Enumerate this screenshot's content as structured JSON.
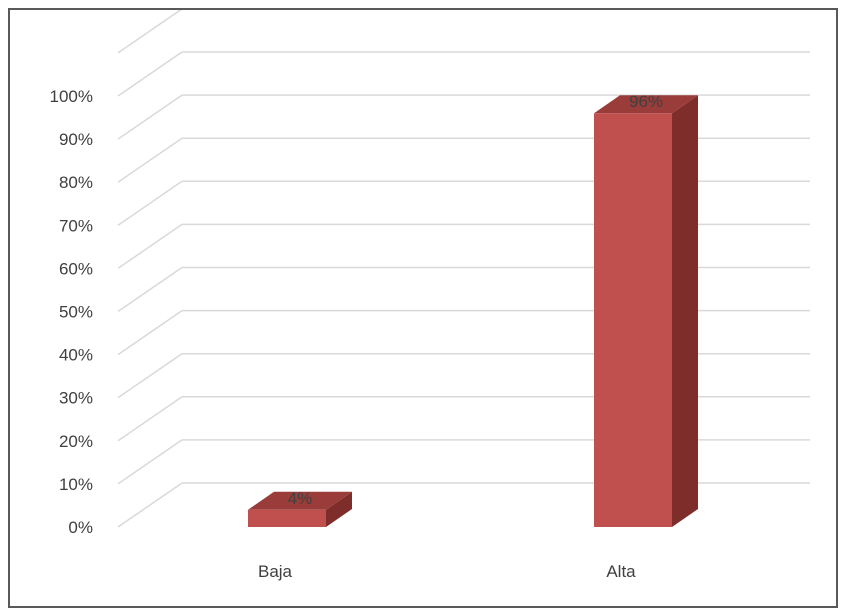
{
  "chart_data": {
    "type": "bar",
    "style": "3d-column",
    "categories": [
      "Baja",
      "Alta"
    ],
    "values": [
      4,
      96
    ],
    "data_labels": [
      "4%",
      "96%"
    ],
    "y_ticks": [
      "0%",
      "10%",
      "20%",
      "30%",
      "40%",
      "50%",
      "60%",
      "70%",
      "80%",
      "90%",
      "100%"
    ],
    "ylim": [
      0,
      100
    ],
    "grid": true,
    "legend": "none",
    "colors": {
      "front": "#c0504d",
      "side": "#7f2d2b",
      "top": "#9a3d3a",
      "gridline": "#d9d9d9",
      "text": "#404040",
      "border": "#595959"
    }
  }
}
